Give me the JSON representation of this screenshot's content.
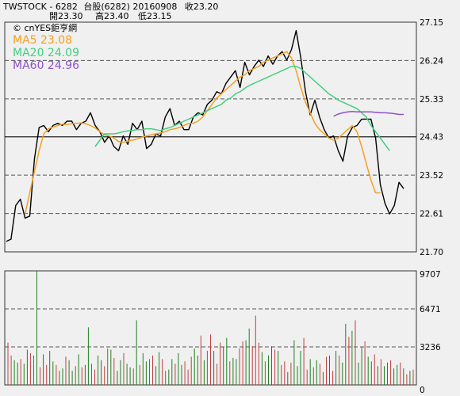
{
  "header": {
    "line1_parts": [
      "TWSTOCK",
      "-",
      "6282",
      "台股(6282)",
      "20160908",
      "收23.20"
    ],
    "line2_parts": [
      "開23.30",
      "高23.40",
      "低23.15"
    ]
  },
  "watermark": "© cnYES鉅亨網",
  "ma_legend": [
    {
      "label": "MA5 23.08",
      "color": "#f5a020"
    },
    {
      "label": "MA20 24.09",
      "color": "#40d080"
    },
    {
      "label": "MA60 24.96",
      "color": "#9050c8"
    }
  ],
  "colors": {
    "price": "#000000",
    "up": "#c04040",
    "down": "#208020",
    "grid": "#555555",
    "frame": "#333333",
    "bg": "#f0f0f0"
  },
  "chart_data": [
    {
      "type": "line",
      "title": "",
      "ylim": [
        21.7,
        27.15
      ],
      "yticks": [
        "27.15",
        "26.24",
        "25.33",
        "24.43",
        "23.52",
        "22.61",
        "21.70"
      ],
      "series": [
        {
          "name": "",
          "values": [
            21.95,
            22.0,
            22.8,
            22.95,
            22.5,
            22.55,
            23.9,
            24.65,
            24.7,
            24.55,
            24.7,
            24.75,
            24.7,
            24.8,
            24.8,
            24.6,
            24.75,
            24.8,
            25.0,
            24.7,
            24.55,
            24.3,
            24.45,
            24.2,
            24.1,
            24.45,
            24.25,
            24.75,
            24.6,
            24.8,
            24.15,
            24.25,
            24.5,
            24.45,
            24.9,
            25.1,
            24.7,
            24.8,
            24.6,
            24.6,
            24.9,
            25.0,
            24.95,
            25.2,
            25.3,
            25.5,
            25.45,
            25.7,
            25.85,
            26.0,
            25.6,
            26.2,
            25.9,
            26.1,
            26.25,
            26.1,
            26.35,
            26.15,
            26.35,
            26.45,
            26.25,
            26.5,
            26.95,
            26.3,
            25.5,
            24.95,
            25.3,
            24.9,
            24.6,
            24.4,
            24.45,
            24.1,
            23.85,
            24.45,
            24.65,
            24.7,
            24.85,
            24.85,
            24.85,
            24.4,
            23.3,
            22.85,
            22.6,
            22.8,
            23.35,
            23.2
          ],
          "color": "#000000"
        },
        {
          "name": "MA5",
          "offset": 4,
          "values": [
            22.6,
            23.1,
            23.6,
            24.1,
            24.5,
            24.62,
            24.66,
            24.7,
            24.73,
            24.72,
            24.74,
            24.75,
            24.76,
            24.74,
            24.7,
            24.64,
            24.55,
            24.48,
            24.45,
            24.4,
            24.32,
            24.3,
            24.33,
            24.35,
            24.38,
            24.42,
            24.45,
            24.48,
            24.5,
            24.52,
            24.55,
            24.6,
            24.62,
            24.65,
            24.7,
            24.75,
            24.75,
            24.8,
            24.9,
            25.05,
            25.2,
            25.35,
            25.45,
            25.55,
            25.65,
            25.75,
            25.85,
            25.9,
            26.0,
            26.05,
            26.1,
            26.2,
            26.25,
            26.3,
            26.35,
            26.4,
            26.45,
            26.3,
            26.0,
            25.6,
            25.25,
            25.0,
            24.75,
            24.6,
            24.5,
            24.4,
            24.35,
            24.4,
            24.5,
            24.6,
            24.7,
            24.55,
            24.2,
            23.8,
            23.4,
            23.1,
            23.1
          ],
          "color": "#f5a020"
        },
        {
          "name": "MA20",
          "offset": 19,
          "values": [
            24.2,
            24.35,
            24.5,
            24.5,
            24.5,
            24.52,
            24.55,
            24.57,
            24.58,
            24.6,
            24.6,
            24.62,
            24.62,
            24.6,
            24.58,
            24.62,
            24.65,
            24.7,
            24.75,
            24.8,
            24.85,
            24.9,
            24.95,
            25.0,
            25.05,
            25.1,
            25.15,
            25.2,
            25.3,
            25.35,
            25.45,
            25.5,
            25.58,
            25.65,
            25.7,
            25.75,
            25.8,
            25.85,
            25.9,
            25.95,
            26.0,
            26.05,
            26.1,
            26.1,
            26.05,
            25.95,
            25.85,
            25.75,
            25.65,
            25.55,
            25.45,
            25.38,
            25.3,
            25.25,
            25.2,
            25.15,
            25.1,
            25.0,
            24.9,
            24.7,
            24.55,
            24.4,
            24.25,
            24.1
          ],
          "color": "#40d080"
        },
        {
          "name": "MA60",
          "offset": 70,
          "values": [
            24.92,
            24.97,
            25.0,
            25.02,
            25.03,
            25.02,
            25.02,
            25.02,
            25.02,
            25.01,
            25.0,
            25.0,
            24.99,
            24.98,
            24.96,
            24.96
          ],
          "color": "#9050c8"
        }
      ]
    },
    {
      "type": "bar",
      "title": "",
      "ylim": [
        0,
        9707
      ],
      "yticks": [
        "9707",
        "6471",
        "3236",
        "0"
      ],
      "values": [
        3600,
        2500,
        2100,
        1900,
        2200,
        1800,
        3000,
        2700,
        2500,
        9707,
        1500,
        2600,
        1700,
        2900,
        2000,
        1700,
        1200,
        1400,
        2400,
        2100,
        1200,
        1600,
        2600,
        1500,
        1700,
        4900,
        1800,
        1300,
        2500,
        2100,
        1600,
        3100,
        3000,
        2300,
        1200,
        2100,
        2700,
        1800,
        1500,
        1400,
        5500,
        1700,
        2700,
        2000,
        2200,
        2500,
        1600,
        2800,
        2200,
        1200,
        1300,
        2200,
        1800,
        2700,
        1700,
        2000,
        1300,
        2400,
        3100,
        2500,
        4200,
        2100,
        2900,
        4300,
        2900,
        1800,
        3600,
        3200,
        4000,
        2000,
        2300,
        2200,
        3100,
        3700,
        3800,
        4800,
        3300,
        5900,
        3600,
        2800,
        2000,
        2500,
        3300,
        3000,
        2900,
        1700,
        2000,
        1100,
        1900,
        3800,
        1600,
        2900,
        4000,
        1300,
        2200,
        1500,
        2100,
        1800,
        1100,
        2400,
        2500,
        1200,
        2900,
        2500,
        1900,
        5200,
        4100,
        4600,
        5500,
        1900,
        3200,
        3700,
        2400,
        2000,
        2600,
        1600,
        2200,
        1600,
        1900,
        2100,
        1400,
        1700,
        1900,
        1400,
        900,
        1200,
        1300
      ],
      "colors_sequence": [
        "up",
        "up",
        "down",
        "down",
        "up",
        "down",
        "down",
        "up",
        "up",
        "down",
        "up",
        "down",
        "up",
        "down",
        "down",
        "up",
        "down",
        "down",
        "up",
        "down",
        "down",
        "up",
        "down",
        "up",
        "down",
        "down",
        "up",
        "up",
        "down",
        "down",
        "up",
        "up",
        "down",
        "up",
        "down",
        "down",
        "up",
        "down",
        "down",
        "up",
        "down",
        "up",
        "down",
        "down",
        "up",
        "up",
        "down",
        "down",
        "up",
        "up",
        "down",
        "down",
        "up",
        "down",
        "down",
        "up",
        "up",
        "up",
        "down",
        "down",
        "up",
        "down",
        "up",
        "up",
        "down",
        "up",
        "up",
        "down",
        "down",
        "up",
        "down",
        "down",
        "up",
        "up",
        "down",
        "down",
        "up",
        "up",
        "up",
        "down",
        "up",
        "down",
        "down",
        "up",
        "down",
        "up",
        "up",
        "down",
        "up",
        "down",
        "down",
        "down",
        "up",
        "up",
        "down",
        "up",
        "down",
        "up",
        "down",
        "up",
        "down",
        "up",
        "down",
        "up",
        "down",
        "down",
        "up",
        "down",
        "up",
        "down",
        "down",
        "up",
        "down",
        "down",
        "up",
        "down",
        "up",
        "down",
        "down",
        "up",
        "down",
        "down",
        "up",
        "down",
        "up",
        "down",
        "up"
      ]
    }
  ]
}
